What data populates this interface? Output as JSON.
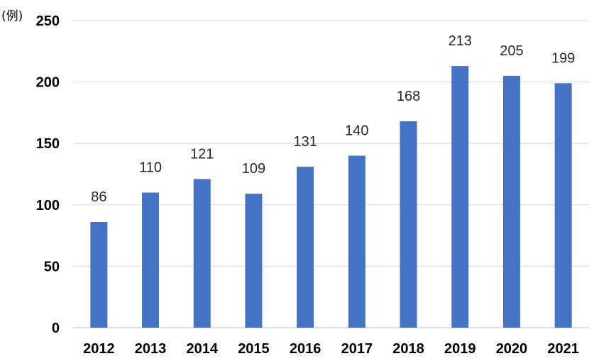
{
  "chart_data": {
    "type": "bar",
    "unit_label": "(例)",
    "categories": [
      "2012",
      "2013",
      "2014",
      "2015",
      "2016",
      "2017",
      "2018",
      "2019",
      "2020",
      "2021"
    ],
    "values": [
      86,
      110,
      121,
      109,
      131,
      140,
      168,
      213,
      205,
      199
    ],
    "y_ticks": [
      "0",
      "50",
      "100",
      "150",
      "200",
      "250"
    ],
    "ylim": [
      0,
      250
    ],
    "grid": true,
    "legend": "none",
    "colors": {
      "bar": "#4472C4",
      "grid": "#d9d9d9"
    }
  }
}
